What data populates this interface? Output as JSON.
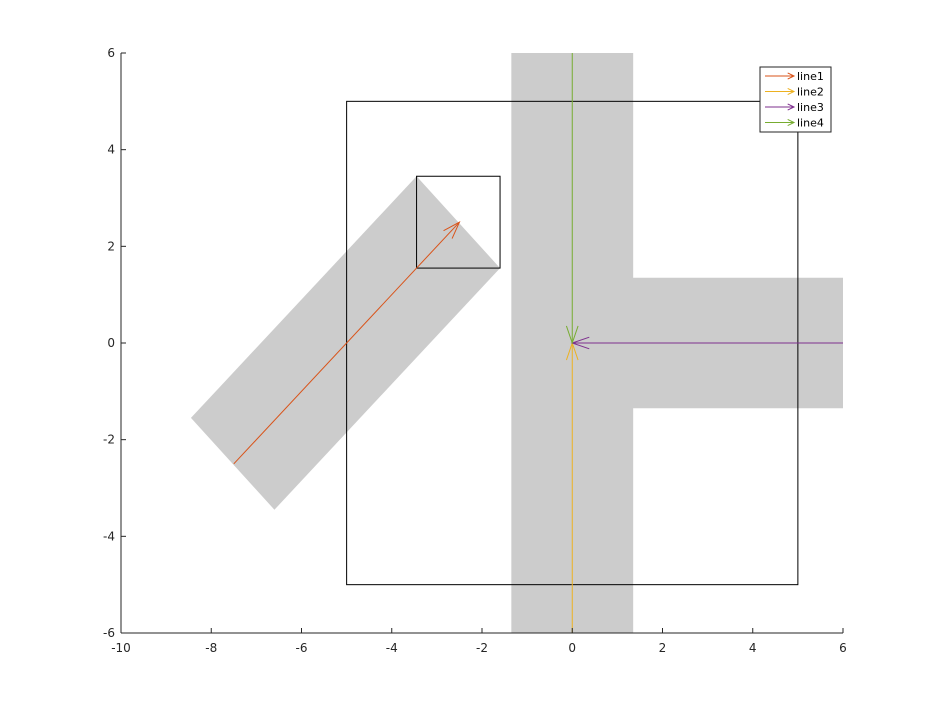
{
  "chart_data": {
    "type": "line",
    "title": "",
    "xlabel": "",
    "ylabel": "",
    "xlim": [
      -10,
      6
    ],
    "ylim": [
      -6,
      6
    ],
    "xticks": [
      -10,
      -8,
      -6,
      -4,
      -2,
      0,
      2,
      4,
      6
    ],
    "yticks": [
      -6,
      -4,
      -2,
      0,
      2,
      4,
      6
    ],
    "grid": false,
    "legend_position": "top-right",
    "shaded_regions": [
      {
        "fill": "#cccccc",
        "points": [
          [
            -6.6,
            -3.45
          ],
          [
            -1.6,
            1.55
          ],
          [
            -3.45,
            3.45
          ],
          [
            -8.45,
            -1.55
          ]
        ]
      },
      {
        "fill": "#cccccc",
        "points": [
          [
            -1.35,
            6
          ],
          [
            1.35,
            6
          ],
          [
            1.35,
            1.35
          ],
          [
            6,
            1.35
          ],
          [
            6,
            -1.35
          ],
          [
            1.35,
            -1.35
          ],
          [
            1.35,
            -6
          ],
          [
            -1.35,
            -6
          ]
        ]
      }
    ],
    "rectangles": [
      {
        "stroke": "#000000",
        "x0": -5,
        "y0": -5,
        "x1": 5,
        "y1": 5
      },
      {
        "stroke": "#000000",
        "x0": -3.45,
        "y0": 1.55,
        "x1": -1.6,
        "y1": 3.45
      }
    ],
    "series": [
      {
        "name": "line1",
        "color": "#d95319",
        "x": [
          -7.5,
          -2.5
        ],
        "y": [
          -2.5,
          2.5
        ]
      },
      {
        "name": "line2",
        "color": "#edb120",
        "x": [
          0,
          0
        ],
        "y": [
          -6,
          0
        ]
      },
      {
        "name": "line3",
        "color": "#7e2f8e",
        "x": [
          6,
          0
        ],
        "y": [
          0,
          0
        ]
      },
      {
        "name": "line4",
        "color": "#77ac30",
        "x": [
          0,
          0
        ],
        "y": [
          6,
          0
        ]
      }
    ]
  }
}
